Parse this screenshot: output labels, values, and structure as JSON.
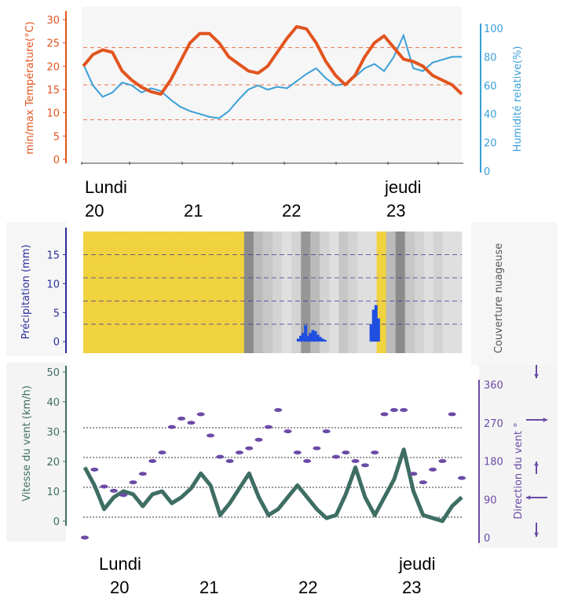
{
  "colors": {
    "temperature": "#e2541f",
    "humidity": "#3a9fd6",
    "precip": "#1f4fe0",
    "precip_axis": "#2b2f9a",
    "wind_speed": "#3e6e63",
    "wind_dir": "#6b4ba6",
    "sun": "#f1d23f",
    "cloud": "#999999"
  },
  "day_labels": {
    "top": [
      {
        "weekday": "Lundi",
        "date": "20"
      },
      {
        "weekday": "",
        "date": "21"
      },
      {
        "weekday": "",
        "date": "22"
      },
      {
        "weekday": "jeudi",
        "date": "23"
      }
    ],
    "bottom": [
      {
        "weekday": "Lundi",
        "date": "20"
      },
      {
        "weekday": "",
        "date": "21"
      },
      {
        "weekday": "",
        "date": "22"
      },
      {
        "weekday": "jeudi",
        "date": "23"
      }
    ]
  },
  "chart_data": [
    {
      "type": "line",
      "ylabel": "min/max Température(°C)",
      "y2label": "Humidité relative(%)",
      "yticks": [
        0,
        5,
        10,
        15,
        20,
        25,
        30
      ],
      "y2ticks": [
        0,
        20,
        40,
        60,
        80,
        100
      ],
      "reference_lines": [
        8.5,
        16,
        24
      ],
      "x": [
        0,
        0.5,
        1,
        1.5,
        2,
        2.5,
        3,
        3.5,
        4,
        4.5,
        5,
        5.5,
        6,
        6.5,
        7,
        7.5,
        8,
        8.5,
        9,
        9.5,
        10,
        10.5,
        11,
        11.5,
        12,
        12.5,
        13,
        13.5,
        14,
        14.5,
        15,
        15.5,
        16,
        16.5,
        17,
        17.5,
        18,
        18.5,
        19,
        19.5
      ],
      "series": [
        {
          "name": "min/max Température(°C)",
          "axis": "left",
          "values": [
            20,
            22.5,
            23.5,
            23,
            19,
            17,
            15.5,
            14.5,
            14,
            17,
            21,
            25,
            27,
            27,
            25,
            22,
            20.5,
            19,
            18.5,
            20,
            23,
            26,
            28.5,
            28,
            25,
            21,
            18,
            16,
            18,
            22,
            25,
            26.5,
            24,
            21.5,
            21,
            20,
            18,
            17,
            16,
            14
          ]
        },
        {
          "name": "Humidité relative(%)",
          "axis": "right",
          "values": [
            75,
            60,
            52,
            55,
            62,
            60,
            55,
            58,
            56,
            50,
            45,
            42,
            40,
            38,
            37,
            42,
            50,
            57,
            60,
            57,
            59,
            58,
            63,
            68,
            72,
            65,
            60,
            61,
            66,
            72,
            75,
            70,
            80,
            95,
            72,
            70,
            76,
            78,
            80,
            80
          ]
        }
      ]
    },
    {
      "type": "bar",
      "ylabel": "Précipitation (mm)",
      "y2label": "Couverture nuageuse",
      "yticks": [
        0,
        5,
        10,
        15
      ],
      "ylim": [
        -2,
        19
      ],
      "reference_lines": [
        3,
        7,
        11,
        15
      ],
      "cloud_cover": [
        0,
        0,
        0,
        0,
        0,
        0,
        0,
        0,
        0,
        0,
        0,
        0,
        0,
        0,
        0,
        0,
        0,
        0.8,
        0.4,
        0.3,
        0.2,
        0.1,
        0.2,
        0.7,
        0.4,
        0.2,
        0.1,
        0.3,
        0.2,
        0.1,
        0.1,
        0,
        0.4,
        0.8,
        0.3,
        0.2,
        0.1,
        0.2,
        0.1,
        0.1
      ],
      "x": [
        22,
        22.25,
        22.5,
        22.75,
        23,
        23.25,
        23.5,
        23.75,
        24,
        24.25,
        24.5,
        24.75,
        29.5,
        29.75,
        30,
        30.25
      ],
      "values": [
        0.5,
        1,
        1.5,
        2.8,
        1,
        1.5,
        2,
        1.8,
        1.2,
        0.8,
        0.5,
        0.3,
        3,
        5.5,
        6.3,
        4
      ]
    },
    {
      "type": "line",
      "ylabel": "Vitesse du vent (km/h)",
      "y2label": "Direction du vent °",
      "yticks": [
        0,
        10,
        20,
        30,
        40,
        50
      ],
      "y2ticks": [
        0,
        90,
        180,
        270,
        360
      ],
      "reference_lines": [
        5,
        15,
        25,
        35
      ],
      "x": [
        0,
        0.5,
        1,
        1.5,
        2,
        2.5,
        3,
        3.5,
        4,
        4.5,
        5,
        5.5,
        6,
        6.5,
        7,
        7.5,
        8,
        8.5,
        9,
        9.5,
        10,
        10.5,
        11,
        11.5,
        12,
        12.5,
        13,
        13.5,
        14,
        14.5,
        15,
        15.5,
        16,
        16.5,
        17,
        17.5,
        18,
        18.5,
        19,
        19.5
      ],
      "series": [
        {
          "name": "Vitesse du vent (km/h)",
          "axis": "left",
          "values": [
            18,
            12,
            4,
            8,
            10,
            9,
            5,
            9,
            10,
            6,
            8,
            11,
            16,
            12,
            2,
            6,
            11,
            16,
            8,
            2,
            4,
            8,
            12,
            8,
            4,
            1,
            2,
            9,
            18,
            8,
            2,
            8,
            14,
            24,
            10,
            2,
            1,
            0,
            5,
            8
          ]
        },
        {
          "name": "Direction du vent °",
          "axis": "right",
          "style": "dots",
          "values": [
            0,
            160,
            120,
            110,
            100,
            130,
            150,
            180,
            200,
            260,
            280,
            270,
            290,
            240,
            190,
            180,
            200,
            210,
            230,
            260,
            300,
            250,
            200,
            180,
            210,
            250,
            190,
            200,
            180,
            170,
            200,
            290,
            300,
            300,
            150,
            130,
            160,
            180,
            290,
            140
          ]
        }
      ]
    }
  ]
}
